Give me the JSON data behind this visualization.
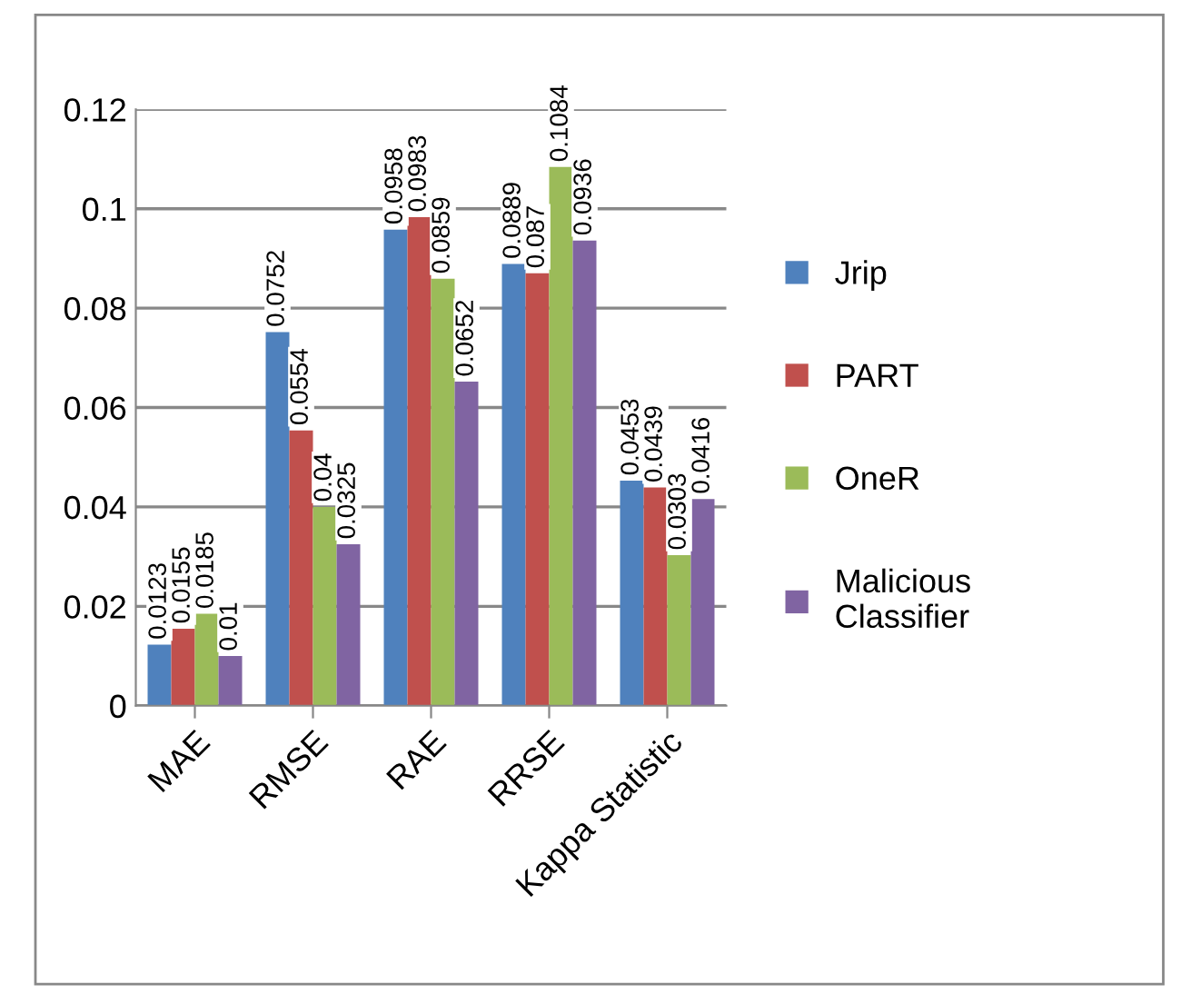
{
  "chart_data": {
    "type": "bar",
    "categories": [
      "MAE",
      "RMSE",
      "RAE",
      "RRSE",
      "Kappa Statistic"
    ],
    "series": [
      {
        "name": "Jrip",
        "color": "#4f81bd",
        "values": [
          0.0123,
          0.0752,
          0.0958,
          0.0889,
          0.0453
        ]
      },
      {
        "name": "PART",
        "color": "#c0504d",
        "values": [
          0.0155,
          0.0554,
          0.0983,
          0.087,
          0.0439
        ]
      },
      {
        "name": "OneR",
        "color": "#9bbb59",
        "values": [
          0.0185,
          0.04,
          0.0859,
          0.1084,
          0.0303
        ]
      },
      {
        "name": "Malicious Classifier",
        "color": "#8064a2",
        "values": [
          0.01,
          0.0325,
          0.0652,
          0.0936,
          0.0416
        ]
      }
    ],
    "ylim": [
      0,
      0.12
    ],
    "yticks": [
      0,
      0.02,
      0.04,
      0.06,
      0.08,
      0.1,
      0.12
    ],
    "grid": "y",
    "legend": "right",
    "data_labels": true
  }
}
